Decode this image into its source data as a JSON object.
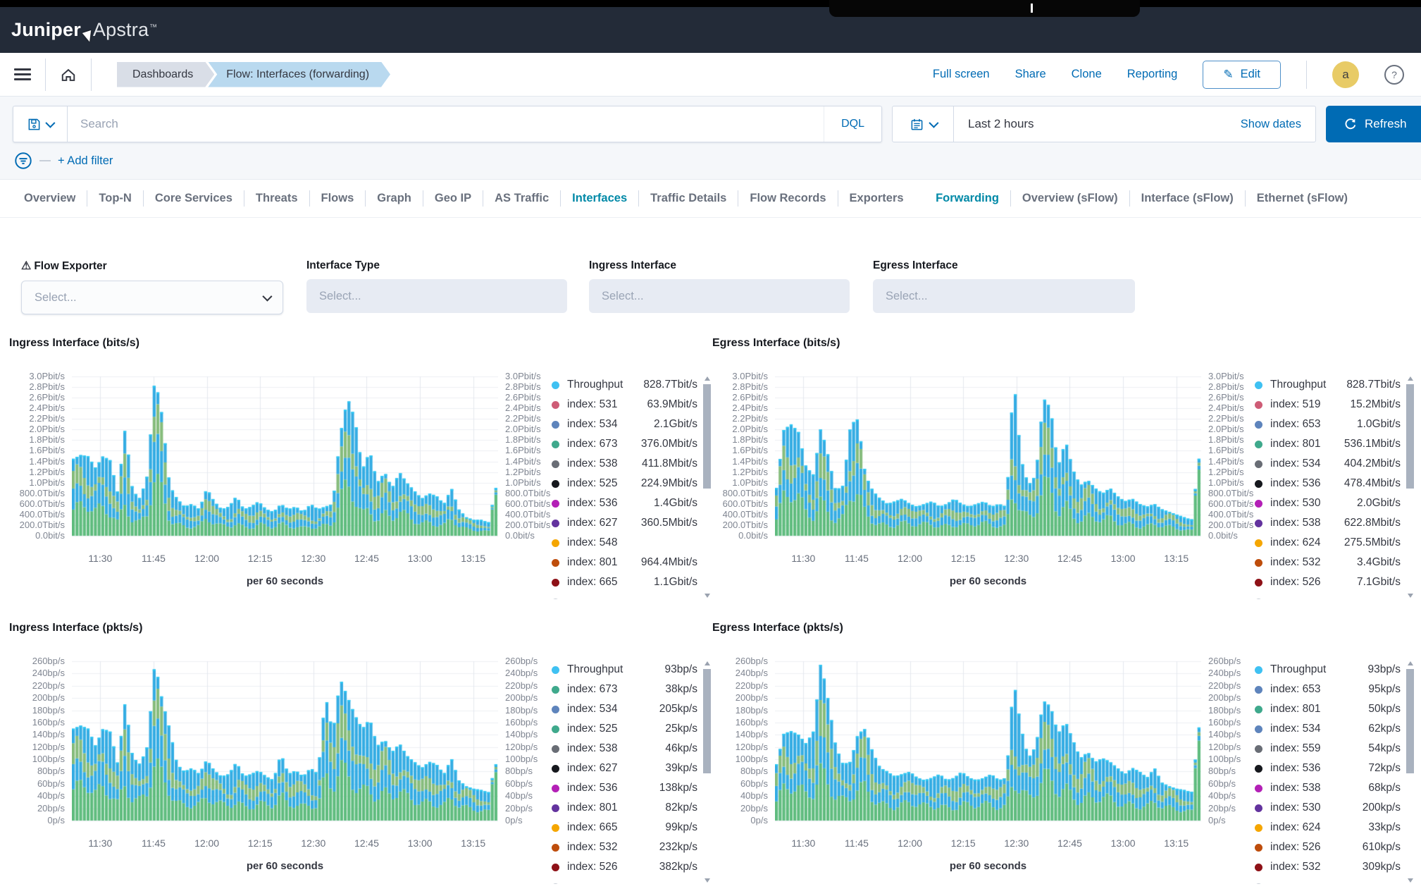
{
  "app": {
    "brand_bold": "Juniper",
    "brand_light": "Apstra",
    "brand_tm": "™"
  },
  "nav": {
    "breadcrumbs": [
      {
        "label": "Dashboards"
      },
      {
        "label": "Flow: Interfaces (forwarding)"
      }
    ],
    "actions": [
      "Full screen",
      "Share",
      "Clone",
      "Reporting"
    ],
    "edit_label": "Edit",
    "avatar_initial": "a",
    "help_label": "?"
  },
  "search": {
    "placeholder": "Search",
    "dql": "DQL",
    "time_range": "Last 2 hours",
    "show_dates": "Show dates",
    "refresh": "Refresh",
    "add_filter": "+ Add filter"
  },
  "tabs": {
    "left": [
      "Overview",
      "Top-N",
      "Core Services",
      "Threats",
      "Flows",
      "Graph",
      "Geo IP",
      "AS Traffic",
      "Interfaces",
      "Traffic Details",
      "Flow Records",
      "Exporters"
    ],
    "active_left": "Interfaces",
    "right": [
      "Forwarding",
      "Overview (sFlow)",
      "Interface (sFlow)",
      "Ethernet (sFlow)"
    ],
    "active_right": "Forwarding"
  },
  "filters": [
    {
      "label": "Flow Exporter",
      "placeholder": "Select...",
      "has_warning": true,
      "enabled": true
    },
    {
      "label": "Interface Type",
      "placeholder": "Select...",
      "has_warning": false,
      "enabled": false
    },
    {
      "label": "Ingress Interface",
      "placeholder": "Select...",
      "has_warning": false,
      "enabled": false
    },
    {
      "label": "Egress Interface",
      "placeholder": "Select...",
      "has_warning": false,
      "enabled": false
    }
  ],
  "style": {
    "accent": "#006BB4",
    "tab_active": "#0089A7",
    "topbar_bg": "#232B38",
    "area_green": "#5FBC7E",
    "area_blue": "#34ACE3",
    "area_sage": "#86BC7C",
    "area_cap": "#2AC8F4",
    "grid_h": "#ECEFF3",
    "grid_v": "#E4E8EE"
  },
  "chart_data": [
    {
      "type": "stacked-area",
      "title": "Ingress Interface (bits/s)",
      "x_axis_label": "per 60 seconds",
      "x_ticks": [
        "11:30",
        "11:45",
        "12:00",
        "12:15",
        "12:30",
        "12:45",
        "13:00",
        "13:15"
      ],
      "x_range": [
        "11:22",
        "13:22"
      ],
      "y_ticks": [
        "3.0Pbit/s",
        "2.8Pbit/s",
        "2.6Pbit/s",
        "2.4Pbit/s",
        "2.2Pbit/s",
        "2.0Pbit/s",
        "1.8Pbit/s",
        "1.6Pbit/s",
        "1.4Pbit/s",
        "1.2Pbit/s",
        "1.0Pbit/s",
        "800.0Tbit/s",
        "600.0Tbit/s",
        "400.0Tbit/s",
        "200.0Tbit/s",
        "0.0bit/s"
      ],
      "y_max": 3.0,
      "y_unit": "Pbit/s",
      "profile": [
        1.45,
        1.52,
        1.5,
        1.28,
        1.5,
        1.42,
        0.8,
        2.05,
        0.85,
        0.7,
        1.15,
        3.0,
        2.25,
        0.95,
        0.7,
        0.55,
        0.6,
        0.5,
        0.9,
        0.65,
        0.5,
        0.55,
        0.75,
        0.5,
        0.55,
        0.65,
        0.5,
        0.45,
        0.6,
        0.5,
        0.55,
        0.45,
        0.6,
        0.5,
        0.55,
        0.6,
        1.9,
        2.6,
        2.2,
        1.25,
        1.6,
        1.0,
        1.2,
        0.9,
        1.2,
        1.0,
        0.85,
        0.7,
        0.8,
        0.75,
        0.6,
        0.9,
        0.5,
        0.35,
        0.3,
        0.3,
        0.25,
        0.9
      ],
      "legend": [
        {
          "name": "Throughput",
          "value": "828.7Tbit/s",
          "color": "#3FC1F2"
        },
        {
          "name": "index: 531",
          "value": "63.9Mbit/s",
          "color": "#CE5C76"
        },
        {
          "name": "index: 534",
          "value": "2.1Gbit/s",
          "color": "#5E84BC"
        },
        {
          "name": "index: 673",
          "value": "376.0Mbit/s",
          "color": "#3FA98C"
        },
        {
          "name": "index: 538",
          "value": "411.8Mbit/s",
          "color": "#696D75"
        },
        {
          "name": "index: 525",
          "value": "224.9Mbit/s",
          "color": "#16181D"
        },
        {
          "name": "index: 536",
          "value": "1.4Gbit/s",
          "color": "#B320B6"
        },
        {
          "name": "index: 627",
          "value": "360.5Mbit/s",
          "color": "#63339E"
        },
        {
          "name": "index: 548",
          "value": "",
          "color": "#F5A600"
        },
        {
          "name": "index: 801",
          "value": "964.4Mbit/s",
          "color": "#BE4D0C"
        },
        {
          "name": "index: 665",
          "value": "1.1Gbit/s",
          "color": "#8E1117"
        },
        {
          "name": "",
          "value": "",
          "color": "#C9CED6",
          "partial": true
        }
      ]
    },
    {
      "type": "stacked-area",
      "title": "Egress Interface (bits/s)",
      "x_axis_label": "per 60 seconds",
      "x_ticks": [
        "11:30",
        "11:45",
        "12:00",
        "12:15",
        "12:30",
        "12:45",
        "13:00",
        "13:15"
      ],
      "x_range": [
        "11:22",
        "13:22"
      ],
      "y_ticks": [
        "3.0Pbit/s",
        "2.8Pbit/s",
        "2.6Pbit/s",
        "2.4Pbit/s",
        "2.2Pbit/s",
        "2.0Pbit/s",
        "1.8Pbit/s",
        "1.6Pbit/s",
        "1.4Pbit/s",
        "1.2Pbit/s",
        "1.0Pbit/s",
        "800.0Tbit/s",
        "600.0Tbit/s",
        "400.0Tbit/s",
        "200.0Tbit/s",
        "0.0bit/s"
      ],
      "y_max": 3.0,
      "y_unit": "Pbit/s",
      "profile": [
        0.9,
        2.0,
        2.1,
        1.95,
        1.3,
        1.15,
        2.05,
        1.5,
        0.85,
        0.95,
        2.1,
        2.2,
        1.15,
        0.85,
        0.7,
        0.6,
        0.65,
        0.7,
        0.6,
        0.55,
        0.6,
        0.65,
        0.55,
        0.6,
        0.7,
        0.6,
        0.55,
        0.6,
        0.65,
        0.55,
        0.6,
        0.55,
        3.0,
        1.45,
        0.95,
        1.15,
        2.6,
        2.4,
        1.3,
        1.8,
        1.25,
        0.95,
        1.05,
        0.9,
        0.8,
        0.9,
        0.75,
        0.65,
        0.7,
        0.6,
        0.55,
        0.6,
        0.5,
        0.45,
        0.4,
        0.35,
        0.3,
        1.45
      ],
      "legend": [
        {
          "name": "Throughput",
          "value": "828.7Tbit/s",
          "color": "#3FC1F2"
        },
        {
          "name": "index: 519",
          "value": "15.2Mbit/s",
          "color": "#CE5C76"
        },
        {
          "name": "index: 653",
          "value": "1.0Gbit/s",
          "color": "#5E84BC"
        },
        {
          "name": "index: 801",
          "value": "536.1Mbit/s",
          "color": "#3FA98C"
        },
        {
          "name": "index: 534",
          "value": "404.2Mbit/s",
          "color": "#696D75"
        },
        {
          "name": "index: 536",
          "value": "478.4Mbit/s",
          "color": "#16181D"
        },
        {
          "name": "index: 530",
          "value": "2.0Gbit/s",
          "color": "#B320B6"
        },
        {
          "name": "index: 538",
          "value": "622.8Mbit/s",
          "color": "#63339E"
        },
        {
          "name": "index: 624",
          "value": "275.5Mbit/s",
          "color": "#F5A600"
        },
        {
          "name": "index: 532",
          "value": "3.4Gbit/s",
          "color": "#BE4D0C"
        },
        {
          "name": "index: 526",
          "value": "7.1Gbit/s",
          "color": "#8E1117"
        },
        {
          "name": "",
          "value": "",
          "color": "#C9CED6",
          "partial": true
        }
      ]
    },
    {
      "type": "stacked-area",
      "title": "Ingress Interface (pkts/s)",
      "x_axis_label": "per 60 seconds",
      "x_ticks": [
        "11:30",
        "11:45",
        "12:00",
        "12:15",
        "12:30",
        "12:45",
        "13:00",
        "13:15"
      ],
      "x_range": [
        "11:22",
        "13:22"
      ],
      "y_ticks": [
        "260bp/s",
        "240bp/s",
        "220bp/s",
        "200bp/s",
        "180bp/s",
        "160bp/s",
        "140bp/s",
        "120bp/s",
        "100bp/s",
        "80bp/s",
        "60bp/s",
        "40bp/s",
        "20bp/s",
        "0p/s"
      ],
      "y_max": 260,
      "y_unit": "p/s",
      "profile": [
        150,
        155,
        150,
        122,
        150,
        145,
        92,
        196,
        104,
        92,
        122,
        260,
        196,
        150,
        92,
        80,
        86,
        76,
        100,
        82,
        72,
        76,
        96,
        72,
        76,
        82,
        72,
        66,
        110,
        76,
        82,
        72,
        86,
        76,
        206,
        142,
        232,
        202,
        172,
        150,
        166,
        122,
        132,
        112,
        126,
        106,
        96,
        86,
        96,
        92,
        76,
        102,
        66,
        56,
        52,
        50,
        46,
        92
      ],
      "legend": [
        {
          "name": "Throughput",
          "value": "93bp/s",
          "color": "#3FC1F2"
        },
        {
          "name": "index: 673",
          "value": "38kp/s",
          "color": "#3FA98C"
        },
        {
          "name": "index: 534",
          "value": "205kp/s",
          "color": "#5E84BC"
        },
        {
          "name": "index: 525",
          "value": "25kp/s",
          "color": "#3FA98C"
        },
        {
          "name": "index: 538",
          "value": "46kp/s",
          "color": "#696D75"
        },
        {
          "name": "index: 627",
          "value": "39kp/s",
          "color": "#16181D"
        },
        {
          "name": "index: 536",
          "value": "138kp/s",
          "color": "#B320B6"
        },
        {
          "name": "index: 801",
          "value": "82kp/s",
          "color": "#63339E"
        },
        {
          "name": "index: 665",
          "value": "99kp/s",
          "color": "#F5A600"
        },
        {
          "name": "index: 532",
          "value": "232kp/s",
          "color": "#BE4D0C"
        },
        {
          "name": "index: 526",
          "value": "382kp/s",
          "color": "#8E1117"
        },
        {
          "name": "",
          "value": "",
          "color": "#C9CED6",
          "partial": true
        }
      ]
    },
    {
      "type": "stacked-area",
      "title": "Egress Interface (pkts/s)",
      "x_axis_label": "per 60 seconds",
      "x_ticks": [
        "11:30",
        "11:45",
        "12:00",
        "12:15",
        "12:30",
        "12:45",
        "13:00",
        "13:15"
      ],
      "x_range": [
        "11:22",
        "13:22"
      ],
      "y_ticks": [
        "260bp/s",
        "240bp/s",
        "220bp/s",
        "200bp/s",
        "180bp/s",
        "160bp/s",
        "140bp/s",
        "120bp/s",
        "100bp/s",
        "80bp/s",
        "60bp/s",
        "40bp/s",
        "20bp/s",
        "0p/s"
      ],
      "y_max": 260,
      "y_unit": "p/s",
      "profile": [
        92,
        142,
        146,
        140,
        126,
        146,
        260,
        196,
        122,
        92,
        96,
        142,
        150,
        112,
        86,
        80,
        72,
        76,
        80,
        70,
        66,
        70,
        76,
        66,
        70,
        80,
        70,
        66,
        70,
        76,
        66,
        70,
        230,
        152,
        102,
        122,
        196,
        186,
        142,
        162,
        132,
        102,
        112,
        96,
        102,
        96,
        86,
        76,
        86,
        80,
        70,
        86,
        62,
        56,
        52,
        50,
        46,
        152
      ],
      "legend": [
        {
          "name": "Throughput",
          "value": "93bp/s",
          "color": "#3FC1F2"
        },
        {
          "name": "index: 653",
          "value": "95kp/s",
          "color": "#5E84BC"
        },
        {
          "name": "index: 801",
          "value": "50kp/s",
          "color": "#3FA98C"
        },
        {
          "name": "index: 534",
          "value": "62kp/s",
          "color": "#5E84BC"
        },
        {
          "name": "index: 559",
          "value": "54kp/s",
          "color": "#696D75"
        },
        {
          "name": "index: 536",
          "value": "72kp/s",
          "color": "#16181D"
        },
        {
          "name": "index: 538",
          "value": "68kp/s",
          "color": "#B320B6"
        },
        {
          "name": "index: 530",
          "value": "200kp/s",
          "color": "#63339E"
        },
        {
          "name": "index: 624",
          "value": "33kp/s",
          "color": "#F5A600"
        },
        {
          "name": "index: 526",
          "value": "610kp/s",
          "color": "#BE4D0C"
        },
        {
          "name": "index: 532",
          "value": "309kp/s",
          "color": "#8E1117"
        },
        {
          "name": "",
          "value": "",
          "color": "#C9CED6",
          "partial": true
        }
      ]
    }
  ]
}
